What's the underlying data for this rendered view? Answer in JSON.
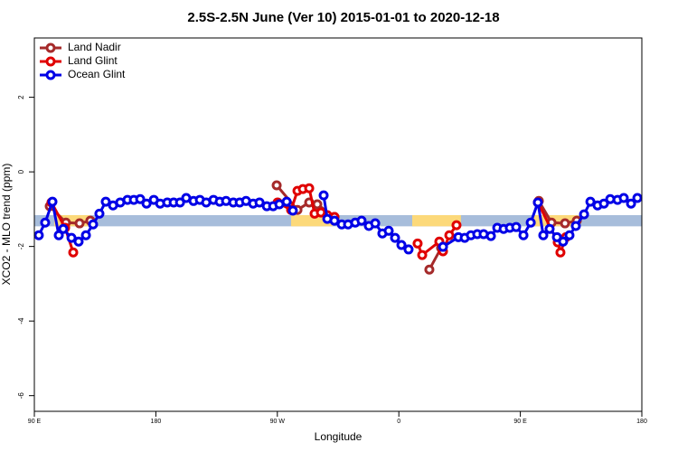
{
  "chart_data": {
    "type": "line",
    "title": "2.5S-2.5N June (Ver 10)   2015-01-01 to 2020-12-18",
    "x_label": "Longitude",
    "y_label": "XCO2 - MLO trend (ppm)",
    "xlim": [
      90,
      540
    ],
    "xticks": [
      {
        "value": 90,
        "label": "90 E"
      },
      180,
      {
        "value": 270,
        "label": "90 W"
      },
      {
        "value": 360,
        "label": "0"
      },
      {
        "value": 450,
        "label": "90 E"
      },
      {
        "value": 540,
        "label": "180"
      }
    ],
    "ylim": [
      -6.42,
      3.59
    ],
    "yticks": [
      -6,
      -4,
      -2,
      0,
      2
    ],
    "band": [
      -1.46,
      -1.16
    ],
    "band_color": "#a7bddb",
    "land_spans": [
      [
        104.7,
        131.5
      ],
      [
        280.2,
        311.0
      ],
      [
        369.9,
        406.0
      ],
      [
        459.6,
        493.0
      ]
    ],
    "land_color": "#fcd97a",
    "legend": "top-left",
    "series": [
      {
        "name": "Land Nadir",
        "color": "#a52a2a",
        "x": [
          101.4,
          113.4,
          123.5,
          131.5,
          null,
          269.5,
          284.9,
          293.6,
          299.6,
          312.3,
          null,
          382.6,
          391.3,
          null,
          463.7,
          473.1,
          483.1,
          491.8
        ],
        "values": [
          -0.92,
          -1.36,
          -1.38,
          -1.31,
          null,
          -0.36,
          -1.02,
          -0.82,
          -0.87,
          -1.21,
          null,
          -2.62,
          -2.04,
          null,
          -0.78,
          -1.36,
          -1.38,
          -1.31
        ]
      },
      {
        "name": "Land Glint",
        "color": "#e00000",
        "x": [
          102.7,
          112.8,
          118.8,
          null,
          270.2,
          280.2,
          284.9,
          288.9,
          293.6,
          297.6,
          302.3,
          307.0,
          312.3,
          null,
          373.9,
          377.3,
          390.0,
          392.7,
          397.4,
          402.7,
          null,
          463.0,
          477.7,
          479.7,
          483.8
        ],
        "values": [
          -0.82,
          -1.5,
          -2.16,
          null,
          -0.82,
          -1.02,
          -0.51,
          -0.46,
          -0.44,
          -1.12,
          -1.09,
          -1.16,
          -1.21,
          null,
          -1.92,
          -2.23,
          -1.87,
          -2.13,
          -1.7,
          -1.43,
          null,
          -0.82,
          -1.89,
          -2.16,
          -1.75
        ]
      },
      {
        "name": "Ocean Glint",
        "color": "#0000e6",
        "x": [
          93.3,
          98.0,
          103.4,
          108.1,
          111.4,
          117.5,
          122.8,
          128.2,
          133.5,
          138.2,
          142.9,
          148.3,
          153.6,
          159.0,
          163.7,
          168.4,
          173.1,
          178.5,
          183.2,
          188.5,
          193.2,
          197.9,
          202.5,
          207.9,
          212.6,
          217.3,
          222.7,
          227.3,
          232.0,
          237.4,
          242.1,
          246.8,
          252.1,
          256.8,
          262.2,
          266.9,
          271.5,
          276.9,
          281.5,
          null,
          304.3,
          307.0,
          312.3,
          317.7,
          322.4,
          327.7,
          332.4,
          337.8,
          342.5,
          347.8,
          352.5,
          357.2,
          361.9,
          367.2,
          null,
          392.7,
          404.1,
          408.8,
          413.4,
          418.1,
          422.8,
          428.2,
          432.9,
          437.6,
          442.2,
          446.9,
          452.3,
          457.7,
          463.0,
          467.0,
          471.7,
          477.1,
          481.7,
          486.4,
          491.1,
          497.2,
          501.9,
          507.2,
          511.9,
          516.6,
          522.0,
          526.6,
          532.0,
          536.7
        ],
        "values": [
          -1.7,
          -1.36,
          -0.8,
          -1.7,
          -1.53,
          -1.77,
          -1.87,
          -1.7,
          -1.41,
          -1.12,
          -0.8,
          -0.9,
          -0.82,
          -0.75,
          -0.75,
          -0.73,
          -0.85,
          -0.75,
          -0.85,
          -0.82,
          -0.82,
          -0.82,
          -0.7,
          -0.78,
          -0.75,
          -0.82,
          -0.75,
          -0.8,
          -0.78,
          -0.82,
          -0.82,
          -0.78,
          -0.85,
          -0.82,
          -0.92,
          -0.92,
          -0.87,
          -0.8,
          -1.04,
          null,
          -0.63,
          -1.26,
          -1.31,
          -1.41,
          -1.41,
          -1.36,
          -1.31,
          -1.45,
          -1.38,
          -1.65,
          -1.58,
          -1.77,
          -1.96,
          -2.08,
          null,
          -2.01,
          -1.75,
          -1.77,
          -1.7,
          -1.67,
          -1.67,
          -1.72,
          -1.5,
          -1.53,
          -1.5,
          -1.48,
          -1.7,
          -1.36,
          -0.82,
          -1.7,
          -1.53,
          -1.75,
          -1.87,
          -1.7,
          -1.45,
          -1.14,
          -0.8,
          -0.9,
          -0.85,
          -0.73,
          -0.75,
          -0.7,
          -0.85,
          -0.7
        ]
      }
    ]
  }
}
